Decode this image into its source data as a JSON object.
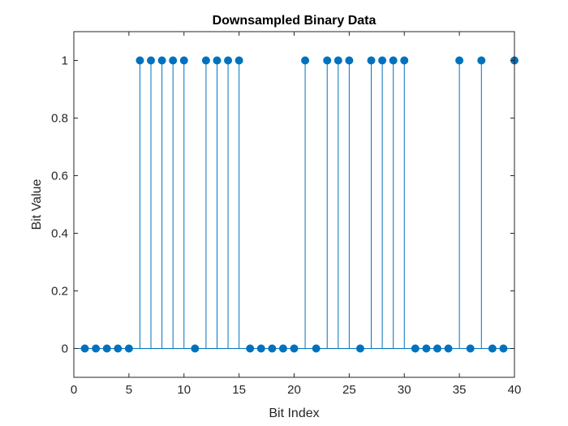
{
  "chart_data": {
    "type": "stem",
    "title": "Downsampled Binary Data",
    "xlabel": "Bit Index",
    "ylabel": "Bit Value",
    "xlim": [
      0,
      40
    ],
    "ylim": [
      -0.1,
      1.1
    ],
    "xticks": [
      0,
      5,
      10,
      15,
      20,
      25,
      30,
      35,
      40
    ],
    "xtick_labels": [
      "0",
      "5",
      "10",
      "15",
      "20",
      "25",
      "30",
      "35",
      "40"
    ],
    "yticks": [
      0,
      0.2,
      0.4,
      0.6,
      0.8,
      1
    ],
    "ytick_labels": [
      "0",
      "0.2",
      "0.4",
      "0.6",
      "0.8",
      "1"
    ],
    "grid": false,
    "series_color": "#0072BD",
    "x": [
      1,
      2,
      3,
      4,
      5,
      6,
      7,
      8,
      9,
      10,
      11,
      12,
      13,
      14,
      15,
      16,
      17,
      18,
      19,
      20,
      21,
      22,
      23,
      24,
      25,
      26,
      27,
      28,
      29,
      30,
      31,
      32,
      33,
      34,
      35,
      36,
      37,
      38,
      39,
      40
    ],
    "values": [
      0,
      0,
      0,
      0,
      0,
      1,
      1,
      1,
      1,
      1,
      0,
      1,
      1,
      1,
      1,
      0,
      0,
      0,
      0,
      0,
      1,
      0,
      1,
      1,
      1,
      0,
      1,
      1,
      1,
      1,
      0,
      0,
      0,
      0,
      1,
      0,
      1,
      0,
      0,
      1
    ]
  }
}
